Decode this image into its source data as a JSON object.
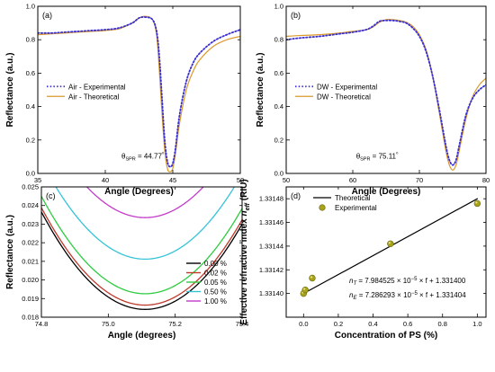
{
  "chart_data": [
    {
      "id": "a",
      "type": "line",
      "panel_label": "(a)",
      "xlabel": "Angle (Degrees)",
      "ylabel": "Reflectance (a.u.)",
      "xlim": [
        35,
        50
      ],
      "ylim": [
        0.0,
        1.0
      ],
      "xticks": [
        35,
        40,
        45,
        50
      ],
      "yticks": [
        0.0,
        0.2,
        0.4,
        0.6,
        0.8,
        1.0
      ],
      "tick_decimals_y": 1,
      "tick_decimals_x": 0,
      "grid": false,
      "legend": "left",
      "annotation": {
        "prefix": "θ",
        "sub": "SPR",
        "value": " = 44.77",
        "unit": "⁰",
        "x": 41.2,
        "y": 0.09
      },
      "series": [
        {
          "name": "Air - Experimental",
          "color": "#3a2fd0",
          "style": "dotted",
          "x": [
            35,
            36,
            37,
            38,
            39,
            40,
            41,
            42,
            42.5,
            43,
            43.5,
            43.8,
            44.0,
            44.2,
            44.4,
            44.6,
            44.8,
            45.0,
            45.2,
            45.5,
            46,
            46.5,
            47,
            48,
            49,
            50
          ],
          "y": [
            0.84,
            0.84,
            0.845,
            0.85,
            0.855,
            0.86,
            0.87,
            0.9,
            0.93,
            0.935,
            0.92,
            0.85,
            0.7,
            0.45,
            0.2,
            0.07,
            0.04,
            0.06,
            0.15,
            0.35,
            0.55,
            0.66,
            0.72,
            0.79,
            0.83,
            0.86
          ]
        },
        {
          "name": "Air - Theoretical",
          "color": "#d99a2b",
          "style": "solid",
          "x": [
            35,
            36,
            37,
            38,
            39,
            40,
            41,
            42,
            42.5,
            43,
            43.5,
            43.8,
            44.0,
            44.2,
            44.4,
            44.6,
            44.8,
            45.0,
            45.2,
            45.5,
            46,
            46.5,
            47,
            48,
            49,
            50
          ],
          "y": [
            0.83,
            0.835,
            0.84,
            0.845,
            0.85,
            0.855,
            0.865,
            0.9,
            0.93,
            0.94,
            0.92,
            0.83,
            0.62,
            0.36,
            0.14,
            0.03,
            0.01,
            0.03,
            0.12,
            0.3,
            0.5,
            0.61,
            0.68,
            0.76,
            0.8,
            0.82
          ]
        }
      ]
    },
    {
      "id": "b",
      "type": "line",
      "panel_label": "(b)",
      "xlabel": "Angle (Degrees)",
      "ylabel": "Reflectance (a.u.)",
      "xlim": [
        50,
        80
      ],
      "ylim": [
        0.0,
        1.0
      ],
      "xticks": [
        50,
        60,
        70,
        80
      ],
      "yticks": [
        0.0,
        0.2,
        0.4,
        0.6,
        0.8,
        1.0
      ],
      "tick_decimals_y": 1,
      "tick_decimals_x": 0,
      "grid": false,
      "legend": "left",
      "annotation": {
        "prefix": "θ",
        "sub": "SPR",
        "value": " = 75.11",
        "unit": "⁰",
        "x": 60.5,
        "y": 0.09
      },
      "series": [
        {
          "name": "DW - Experimental",
          "color": "#3a2fd0",
          "style": "dotted",
          "x": [
            50,
            52,
            55,
            58,
            60,
            62,
            63,
            64,
            65,
            66,
            67,
            68,
            69,
            70,
            71,
            72,
            73,
            74,
            74.5,
            75,
            75.5,
            76,
            77,
            78,
            79,
            80
          ],
          "y": [
            0.8,
            0.81,
            0.82,
            0.835,
            0.845,
            0.86,
            0.88,
            0.91,
            0.915,
            0.915,
            0.91,
            0.9,
            0.87,
            0.82,
            0.73,
            0.58,
            0.38,
            0.16,
            0.08,
            0.05,
            0.08,
            0.17,
            0.35,
            0.45,
            0.5,
            0.53
          ]
        },
        {
          "name": "DW - Theoretical",
          "color": "#d99a2b",
          "style": "solid",
          "x": [
            50,
            52,
            55,
            58,
            60,
            62,
            63,
            64,
            65,
            66,
            67,
            68,
            69,
            70,
            71,
            72,
            73,
            74,
            74.5,
            75,
            75.5,
            76,
            77,
            78,
            79,
            80
          ],
          "y": [
            0.82,
            0.825,
            0.83,
            0.84,
            0.85,
            0.86,
            0.875,
            0.905,
            0.92,
            0.92,
            0.915,
            0.905,
            0.88,
            0.83,
            0.74,
            0.58,
            0.36,
            0.13,
            0.05,
            0.02,
            0.05,
            0.14,
            0.33,
            0.46,
            0.53,
            0.57
          ]
        }
      ]
    },
    {
      "id": "c",
      "type": "line",
      "panel_label": "(c)",
      "xlabel": "Angle (degrees)",
      "ylabel": "Reflectance (a.u.)",
      "xlim": [
        74.8,
        75.4
      ],
      "ylim": [
        0.018,
        0.025
      ],
      "xticks": [
        74.8,
        75.0,
        75.2,
        75.4
      ],
      "yticks": [
        0.018,
        0.019,
        0.02,
        0.021,
        0.022,
        0.023,
        0.024,
        0.025
      ],
      "tick_decimals_y": 3,
      "tick_decimals_x": 1,
      "grid": false,
      "legend": "bottom-right",
      "parabola_vertex_x": 75.11,
      "series": [
        {
          "name": "0.00 %",
          "color": "#000000",
          "min_y": 0.01842,
          "curvature": 0.0545
        },
        {
          "name": "0.02 %",
          "color": "#c0392b",
          "min_y": 0.01865,
          "curvature": 0.0545
        },
        {
          "name": "0.05 %",
          "color": "#2ecc40",
          "min_y": 0.01926,
          "curvature": 0.0545
        },
        {
          "name": "0.50 %",
          "color": "#35c4d6",
          "min_y": 0.02112,
          "curvature": 0.0545
        },
        {
          "name": "1.00 %",
          "color": "#c23ac9",
          "min_y": 0.02335,
          "curvature": 0.0545
        }
      ]
    },
    {
      "id": "d",
      "type": "scatter",
      "panel_label": "(d)",
      "xlabel": "Concentration of PS (%)",
      "ylabel_parts": [
        "Effective refractive index ",
        "n",
        "eff",
        " (RIU)"
      ],
      "xlim": [
        -0.1,
        1.05
      ],
      "ylim": [
        1.33138,
        1.33149
      ],
      "xticks": [
        0.0,
        0.2,
        0.4,
        0.6,
        0.8,
        1.0
      ],
      "yticks": [
        1.3314,
        1.33142,
        1.33144,
        1.33146,
        1.33148
      ],
      "tick_decimals_y": 5,
      "tick_decimals_x": 1,
      "grid": false,
      "legend": "top-left",
      "series": [
        {
          "name": "Theoretical",
          "color": "#000000",
          "kind": "line",
          "x": [
            0.0,
            1.0
          ],
          "y": [
            1.3314,
            1.33148
          ]
        },
        {
          "name": "Experimental",
          "color": "#a8a21a",
          "kind": "points",
          "x": [
            0.0,
            0.01,
            0.05,
            0.5,
            1.0
          ],
          "y": [
            1.3314,
            1.331403,
            1.331413,
            1.331442,
            1.331476
          ]
        }
      ],
      "equations": [
        {
          "lhs": "n",
          "sub": "T",
          "mid": " = 7.984525 × 10",
          "sup": "−5",
          "rhs": " × f + 1.331400"
        },
        {
          "lhs": "n",
          "sub": "E",
          "mid": " = 7.286293 × 10",
          "sup": "−5",
          "rhs": " × f + 1.331404"
        }
      ]
    }
  ]
}
